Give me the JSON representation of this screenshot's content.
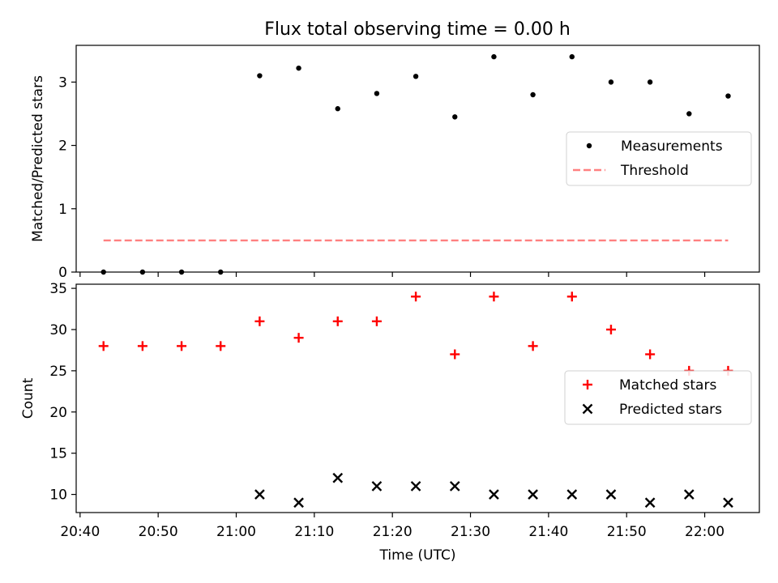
{
  "figure": {
    "title": "Flux total observing time = 0.00 h"
  },
  "chart_data": [
    {
      "type": "scatter",
      "title": "Flux total observing time = 0.00 h",
      "xlabel": "",
      "ylabel": "Matched/Predicted stars",
      "x_tick_labels": [
        "20:40",
        "20:50",
        "21:00",
        "21:10",
        "21:20",
        "21:30",
        "21:40",
        "21:50",
        "22:00"
      ],
      "x_ticks_minutes": [
        1240,
        1250,
        1260,
        1270,
        1280,
        1290,
        1300,
        1310,
        1320
      ],
      "xlim_minutes": [
        1239.5,
        1327
      ],
      "ylim": [
        0,
        3.58
      ],
      "y_ticks": [
        0,
        1,
        2,
        3
      ],
      "legend_placement": "center-right",
      "series": [
        {
          "name": "Measurements",
          "marker": "dot",
          "color": "#000000",
          "x": [
            "20:43",
            "20:48",
            "20:53",
            "20:58",
            "21:03",
            "21:08",
            "21:13",
            "21:18",
            "21:23",
            "21:28",
            "21:33",
            "21:38",
            "21:43",
            "21:48",
            "21:53",
            "21:58",
            "22:03"
          ],
          "values": [
            0,
            0,
            0,
            0,
            3.1,
            3.22,
            2.58,
            2.82,
            3.09,
            2.45,
            3.4,
            2.8,
            3.4,
            3.0,
            3.0,
            2.5,
            2.78
          ]
        },
        {
          "name": "Threshold",
          "marker": "dashed-line",
          "color": "#ff8080",
          "x": [
            "20:43",
            "22:03"
          ],
          "values": [
            0.5,
            0.5
          ]
        }
      ]
    },
    {
      "type": "scatter",
      "title": "",
      "xlabel": "Time (UTC)",
      "ylabel": "Count",
      "x_tick_labels": [
        "20:40",
        "20:50",
        "21:00",
        "21:10",
        "21:20",
        "21:30",
        "21:40",
        "21:50",
        "22:00"
      ],
      "x_ticks_minutes": [
        1240,
        1250,
        1260,
        1270,
        1280,
        1290,
        1300,
        1310,
        1320
      ],
      "xlim_minutes": [
        1239.5,
        1327
      ],
      "ylim": [
        7.8,
        35.5
      ],
      "y_ticks": [
        10,
        15,
        20,
        25,
        30,
        35
      ],
      "legend_placement": "center-right",
      "series": [
        {
          "name": "Matched stars",
          "marker": "plus",
          "color": "#ff0000",
          "x": [
            "20:43",
            "20:48",
            "20:53",
            "20:58",
            "21:03",
            "21:08",
            "21:13",
            "21:18",
            "21:23",
            "21:28",
            "21:33",
            "21:38",
            "21:43",
            "21:48",
            "21:53",
            "21:58",
            "22:03"
          ],
          "values": [
            28,
            28,
            28,
            28,
            31,
            29,
            31,
            31,
            34,
            27,
            34,
            28,
            34,
            30,
            27,
            25,
            25
          ]
        },
        {
          "name": "Predicted stars",
          "marker": "x",
          "color": "#000000",
          "x": [
            "21:03",
            "21:08",
            "21:13",
            "21:18",
            "21:23",
            "21:28",
            "21:33",
            "21:38",
            "21:43",
            "21:48",
            "21:53",
            "21:58",
            "22:03"
          ],
          "values": [
            10,
            9,
            12,
            11,
            11,
            11,
            10,
            10,
            10,
            10,
            9,
            10,
            9
          ]
        }
      ]
    }
  ]
}
